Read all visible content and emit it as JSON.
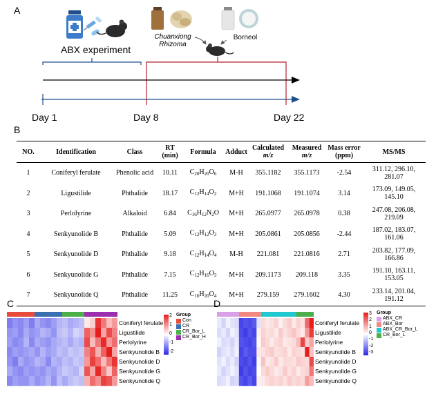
{
  "panels": {
    "a": "A",
    "b": "B",
    "c": "C",
    "d": "D"
  },
  "timeline": {
    "abx_label": "ABX experiment",
    "drug1": "Chuanxiong\nRhizoma",
    "drug2": "Borneol",
    "days": [
      "Day 1",
      "Day 8",
      "Day 22"
    ]
  },
  "table": {
    "headers": [
      "NO.",
      "Identification",
      "Class",
      "RT\n(min)",
      "Formula",
      "Adduct",
      "Calculated\nm/z",
      "Measured\nm/z",
      "Mass error\n(ppm)",
      "MS/MS"
    ],
    "rows": [
      {
        "no": "1",
        "name": "Coniferyl ferulate",
        "cls": "Phenolic acid",
        "rt": "10.11",
        "formula": [
          [
            "C",
            "20"
          ],
          [
            "H",
            "20"
          ],
          [
            "O",
            "6"
          ]
        ],
        "adduct": "M-H",
        "calc": "355.1182",
        "meas": "355.1173",
        "err": "-2.54",
        "msms": "311.12, 296.10,\n281.07"
      },
      {
        "no": "2",
        "name": "Ligustilide",
        "cls": "Phthalide",
        "rt": "18.17",
        "formula": [
          [
            "C",
            "12"
          ],
          [
            "H",
            "14"
          ],
          [
            "O",
            "2"
          ]
        ],
        "adduct": "M+H",
        "calc": "191.1068",
        "meas": "191.1074",
        "err": "3.14",
        "msms": "173.09, 149.05,\n145.10"
      },
      {
        "no": "3",
        "name": "Perlolyrine",
        "cls": "Alkaloid",
        "rt": "6.84",
        "formula": [
          [
            "C",
            "16"
          ],
          [
            "H",
            "12"
          ],
          [
            "N",
            "2"
          ],
          [
            "O",
            ""
          ]
        ],
        "adduct": "M+H",
        "calc": "265.0977",
        "meas": "265.0978",
        "err": "0.38",
        "msms": "247.08, 206.08,\n219.09"
      },
      {
        "no": "4",
        "name": "Senkyunolide B",
        "cls": "Phthalide",
        "rt": "5.09",
        "formula": [
          [
            "C",
            "12"
          ],
          [
            "H",
            "12"
          ],
          [
            "O",
            "3"
          ]
        ],
        "adduct": "M+H",
        "calc": "205.0861",
        "meas": "205.0856",
        "err": "-2.44",
        "msms": "187.02, 183.07,\n161.06"
      },
      {
        "no": "5",
        "name": "Senkyunolide D",
        "cls": "Phthalide",
        "rt": "9.18",
        "formula": [
          [
            "C",
            "12"
          ],
          [
            "H",
            "14"
          ],
          [
            "O",
            "4"
          ]
        ],
        "adduct": "M-H",
        "calc": "221.081",
        "meas": "221.0816",
        "err": "2.71",
        "msms": "203.82, 177.09,\n166.86"
      },
      {
        "no": "6",
        "name": "Senkyunolide G",
        "cls": "Phthalide",
        "rt": "7.15",
        "formula": [
          [
            "C",
            "12"
          ],
          [
            "H",
            "16"
          ],
          [
            "O",
            "3"
          ]
        ],
        "adduct": "M+H",
        "calc": "209.1173",
        "meas": "209.118",
        "err": "3.35",
        "msms": "191.10, 163.11,\n153.05"
      },
      {
        "no": "7",
        "name": "Senkyunolide Q",
        "cls": "Phthalide",
        "rt": "11.25",
        "formula": [
          [
            "C",
            "16"
          ],
          [
            "H",
            "20"
          ],
          [
            "O",
            "4"
          ]
        ],
        "adduct": "M+H",
        "calc": "279.159",
        "meas": "279.1602",
        "err": "4.30",
        "msms": "233.14, 201.04,\n191.12"
      }
    ]
  },
  "heatmap_c": {
    "rows": [
      "Coniferyl ferulate",
      "Ligustilide",
      "Perlolyrine",
      "Senkyunolide B",
      "Senkyunolide D",
      "Senkyunolide G",
      "Senkyunolide Q"
    ],
    "legend_title": "Group",
    "groups": [
      {
        "name": "Con",
        "color": "#e74c3c"
      },
      {
        "name": "CR",
        "color": "#3a6fb0"
      },
      {
        "name": "CR_Bor_L",
        "color": "#4daf4a"
      },
      {
        "name": "CR_Bor_H",
        "color": "#9b2fae"
      }
    ],
    "ticks": [
      "2",
      "1",
      "0",
      "-1",
      "-2"
    ],
    "values": [
      [
        -1.2,
        -1.0,
        -1.1,
        -0.9,
        -1.2,
        -0.8,
        -1.0,
        -1.1,
        -0.9,
        -0.7,
        -0.6,
        -0.8,
        -0.7,
        -0.6,
        0.2,
        0.4,
        1.8,
        1.2,
        0.6,
        0.9
      ],
      [
        -1.0,
        -0.9,
        -1.1,
        -0.8,
        -1.0,
        -0.9,
        -0.7,
        -0.8,
        -1.0,
        -0.6,
        -0.5,
        -0.7,
        -0.4,
        -0.5,
        1.4,
        1.0,
        2.0,
        0.8,
        1.6,
        1.1
      ],
      [
        -0.9,
        -1.1,
        -1.0,
        -0.7,
        -1.1,
        -0.8,
        -0.9,
        -1.0,
        -0.8,
        -0.7,
        -0.6,
        -0.8,
        -0.6,
        -0.7,
        1.6,
        0.6,
        1.2,
        1.9,
        0.9,
        1.3
      ],
      [
        -1.1,
        -0.9,
        -1.0,
        -0.9,
        -0.8,
        -1.0,
        -0.7,
        -0.9,
        -0.8,
        -0.6,
        -0.7,
        -0.5,
        -0.6,
        -0.5,
        1.1,
        1.5,
        0.7,
        1.4,
        2.0,
        0.8
      ],
      [
        -1.0,
        -1.2,
        -0.8,
        -1.0,
        -0.9,
        -0.7,
        -0.8,
        -1.1,
        -0.7,
        -0.8,
        -0.6,
        -0.7,
        -0.5,
        -0.6,
        0.9,
        1.7,
        1.3,
        0.6,
        1.2,
        1.8
      ],
      [
        -0.8,
        -1.0,
        -1.1,
        -0.9,
        -1.0,
        -0.9,
        -1.0,
        -0.8,
        -0.9,
        -0.7,
        -0.5,
        -0.6,
        -0.7,
        -0.4,
        1.5,
        0.8,
        1.9,
        1.1,
        0.5,
        1.4
      ],
      [
        -1.1,
        -0.9,
        -1.0,
        -1.0,
        -0.8,
        -1.0,
        -0.9,
        -0.7,
        -1.0,
        -0.6,
        -0.8,
        -0.6,
        -0.5,
        -0.6,
        0.7,
        1.3,
        1.0,
        1.7,
        1.5,
        0.9
      ]
    ]
  },
  "heatmap_d": {
    "rows": [
      "Coniferyl ferulate",
      "Ligustilide",
      "Perlolyrine",
      "Senkyunolide B",
      "Senkyunolide D",
      "Senkyunolide G",
      "Senkyunolide Q"
    ],
    "legend_title": "Group",
    "groups": [
      {
        "name": "ABX_CR",
        "color": "#d9a0e8"
      },
      {
        "name": "ABX_Bor",
        "color": "#f08a80"
      },
      {
        "name": "ABX_CR_Bor_L",
        "color": "#20c8d0"
      },
      {
        "name": "CR_Bor_L",
        "color": "#4daf4a"
      }
    ],
    "ticks": [
      "3",
      "2",
      "1",
      "0",
      "-1",
      "-2",
      "-3"
    ],
    "values": [
      [
        -0.3,
        -0.6,
        -0.2,
        -0.4,
        -0.5,
        -2.6,
        -2.4,
        -2.5,
        -2.3,
        -0.4,
        0.5,
        0.3,
        0.4,
        0.6,
        0.2,
        0.5,
        0.7,
        0.3,
        0.6,
        0.4,
        2.0,
        3.0
      ],
      [
        -0.5,
        -0.3,
        -0.6,
        -0.2,
        -0.4,
        -2.5,
        -2.7,
        -2.4,
        -2.6,
        0.2,
        0.6,
        0.4,
        0.5,
        0.3,
        0.7,
        0.4,
        0.6,
        0.8,
        0.5,
        0.3,
        1.4,
        2.6
      ],
      [
        -0.2,
        -0.5,
        -0.4,
        -0.6,
        -0.3,
        -2.4,
        -2.5,
        -2.6,
        -2.4,
        0.1,
        0.7,
        0.5,
        0.3,
        0.5,
        0.6,
        0.3,
        0.4,
        0.5,
        0.9,
        2.5,
        0.7,
        1.2
      ],
      [
        -0.6,
        -0.4,
        -0.3,
        -0.5,
        -0.2,
        -2.6,
        -2.3,
        -2.5,
        -2.5,
        0.3,
        0.4,
        0.6,
        0.7,
        0.4,
        0.5,
        0.6,
        0.3,
        0.6,
        0.5,
        0.4,
        3.0,
        0.8
      ],
      [
        -0.4,
        -0.2,
        -0.5,
        -0.3,
        -0.6,
        -2.5,
        -2.6,
        -2.4,
        -2.7,
        -0.1,
        0.8,
        0.3,
        0.4,
        0.7,
        0.3,
        0.5,
        0.5,
        0.4,
        0.7,
        0.6,
        0.5,
        2.4
      ],
      [
        -0.3,
        -0.6,
        -0.4,
        -0.2,
        -0.4,
        -2.7,
        -2.4,
        -2.6,
        -2.5,
        0.0,
        0.5,
        0.7,
        0.5,
        0.3,
        0.4,
        0.7,
        0.4,
        0.6,
        0.3,
        0.5,
        0.6,
        1.8
      ],
      [
        -0.5,
        -0.4,
        -0.2,
        -0.6,
        -0.5,
        -2.4,
        -2.6,
        -2.3,
        -2.6,
        0.2,
        0.3,
        0.5,
        0.6,
        0.5,
        0.6,
        0.4,
        0.7,
        0.5,
        0.6,
        0.5,
        1.3,
        0.9
      ]
    ]
  }
}
